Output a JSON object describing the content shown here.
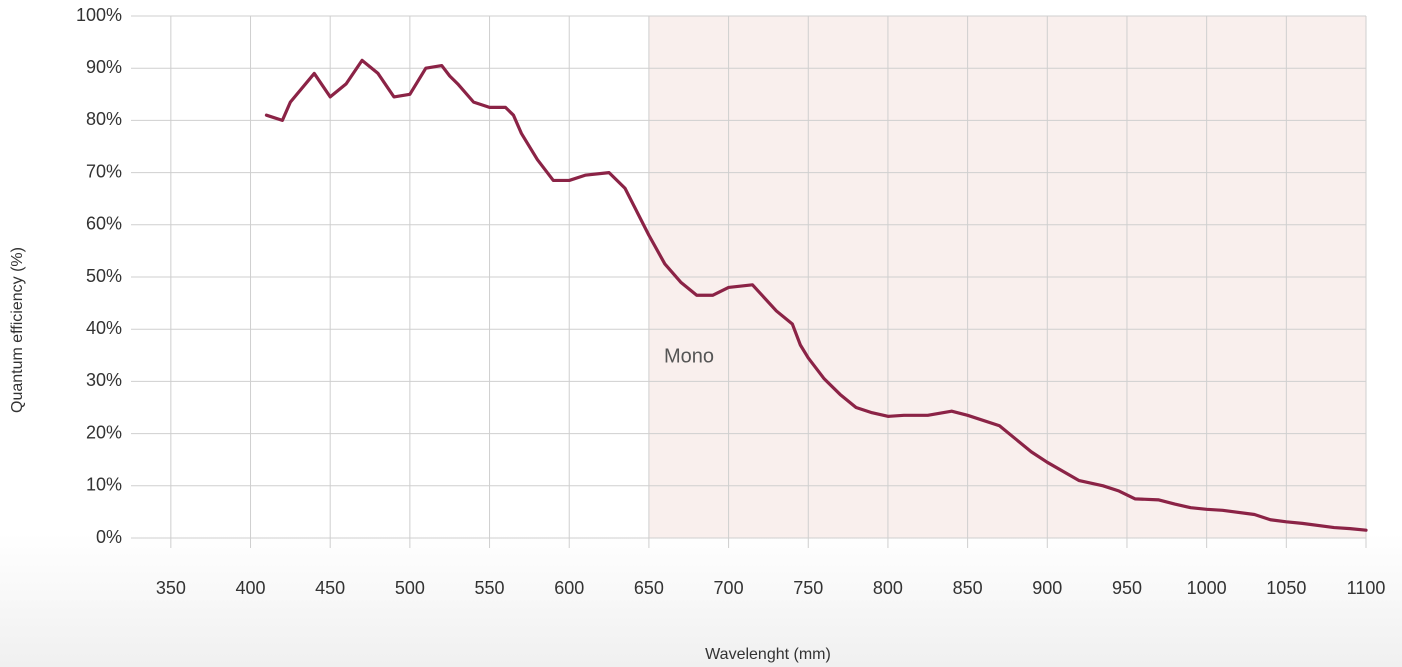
{
  "chart_data": {
    "type": "line",
    "x_label": "Wavelenght (mm)",
    "y_label": "Quantum efficiency (%)",
    "annotation": "Mono",
    "shaded_range": [
      650,
      1100
    ],
    "shade_color": "#f9efed",
    "grid": true,
    "xlim": [
      325,
      1100
    ],
    "xticks": [
      350,
      400,
      450,
      500,
      550,
      600,
      650,
      700,
      750,
      800,
      850,
      900,
      950,
      1000,
      1050,
      1100
    ],
    "ylim": [
      0,
      100
    ],
    "yticks": [
      {
        "value": 0,
        "label": "0%"
      },
      {
        "value": 10,
        "label": "10%"
      },
      {
        "value": 20,
        "label": "20%"
      },
      {
        "value": 30,
        "label": "30%"
      },
      {
        "value": 40,
        "label": "40%"
      },
      {
        "value": 50,
        "label": "50%"
      },
      {
        "value": 60,
        "label": "60%"
      },
      {
        "value": 70,
        "label": "70%"
      },
      {
        "value": 80,
        "label": "80%"
      },
      {
        "value": 90,
        "label": "90%"
      },
      {
        "value": 100,
        "label": "100%"
      }
    ],
    "x": [
      410,
      420,
      425,
      440,
      450,
      460,
      470,
      480,
      490,
      500,
      510,
      520,
      525,
      530,
      540,
      550,
      560,
      565,
      570,
      580,
      590,
      600,
      610,
      625,
      635,
      650,
      660,
      670,
      680,
      690,
      700,
      715,
      730,
      740,
      745,
      750,
      760,
      770,
      780,
      790,
      800,
      810,
      825,
      840,
      850,
      870,
      880,
      890,
      900,
      920,
      935,
      945,
      955,
      970,
      980,
      990,
      1000,
      1010,
      1030,
      1040,
      1050,
      1060,
      1080,
      1090,
      1100
    ],
    "series": [
      {
        "color": "#8b2346",
        "values": [
          81,
          80,
          83.5,
          89,
          84.5,
          87,
          91.5,
          89,
          84.5,
          85,
          90,
          90.5,
          88.5,
          87,
          83.5,
          82.5,
          82.5,
          81,
          77.5,
          72.5,
          68.5,
          68.5,
          69.5,
          70,
          67,
          58,
          52.5,
          49,
          46.5,
          46.5,
          48,
          48.5,
          43.5,
          41,
          37,
          34.5,
          30.5,
          27.5,
          25,
          24,
          23.3,
          23.5,
          23.5,
          24.3,
          23.5,
          21.5,
          19,
          16.5,
          14.5,
          11,
          10,
          9,
          7.5,
          7.3,
          6.5,
          5.8,
          5.5,
          5.3,
          4.5,
          3.5,
          3.1,
          2.8,
          2,
          1.8,
          1.5
        ]
      }
    ]
  }
}
